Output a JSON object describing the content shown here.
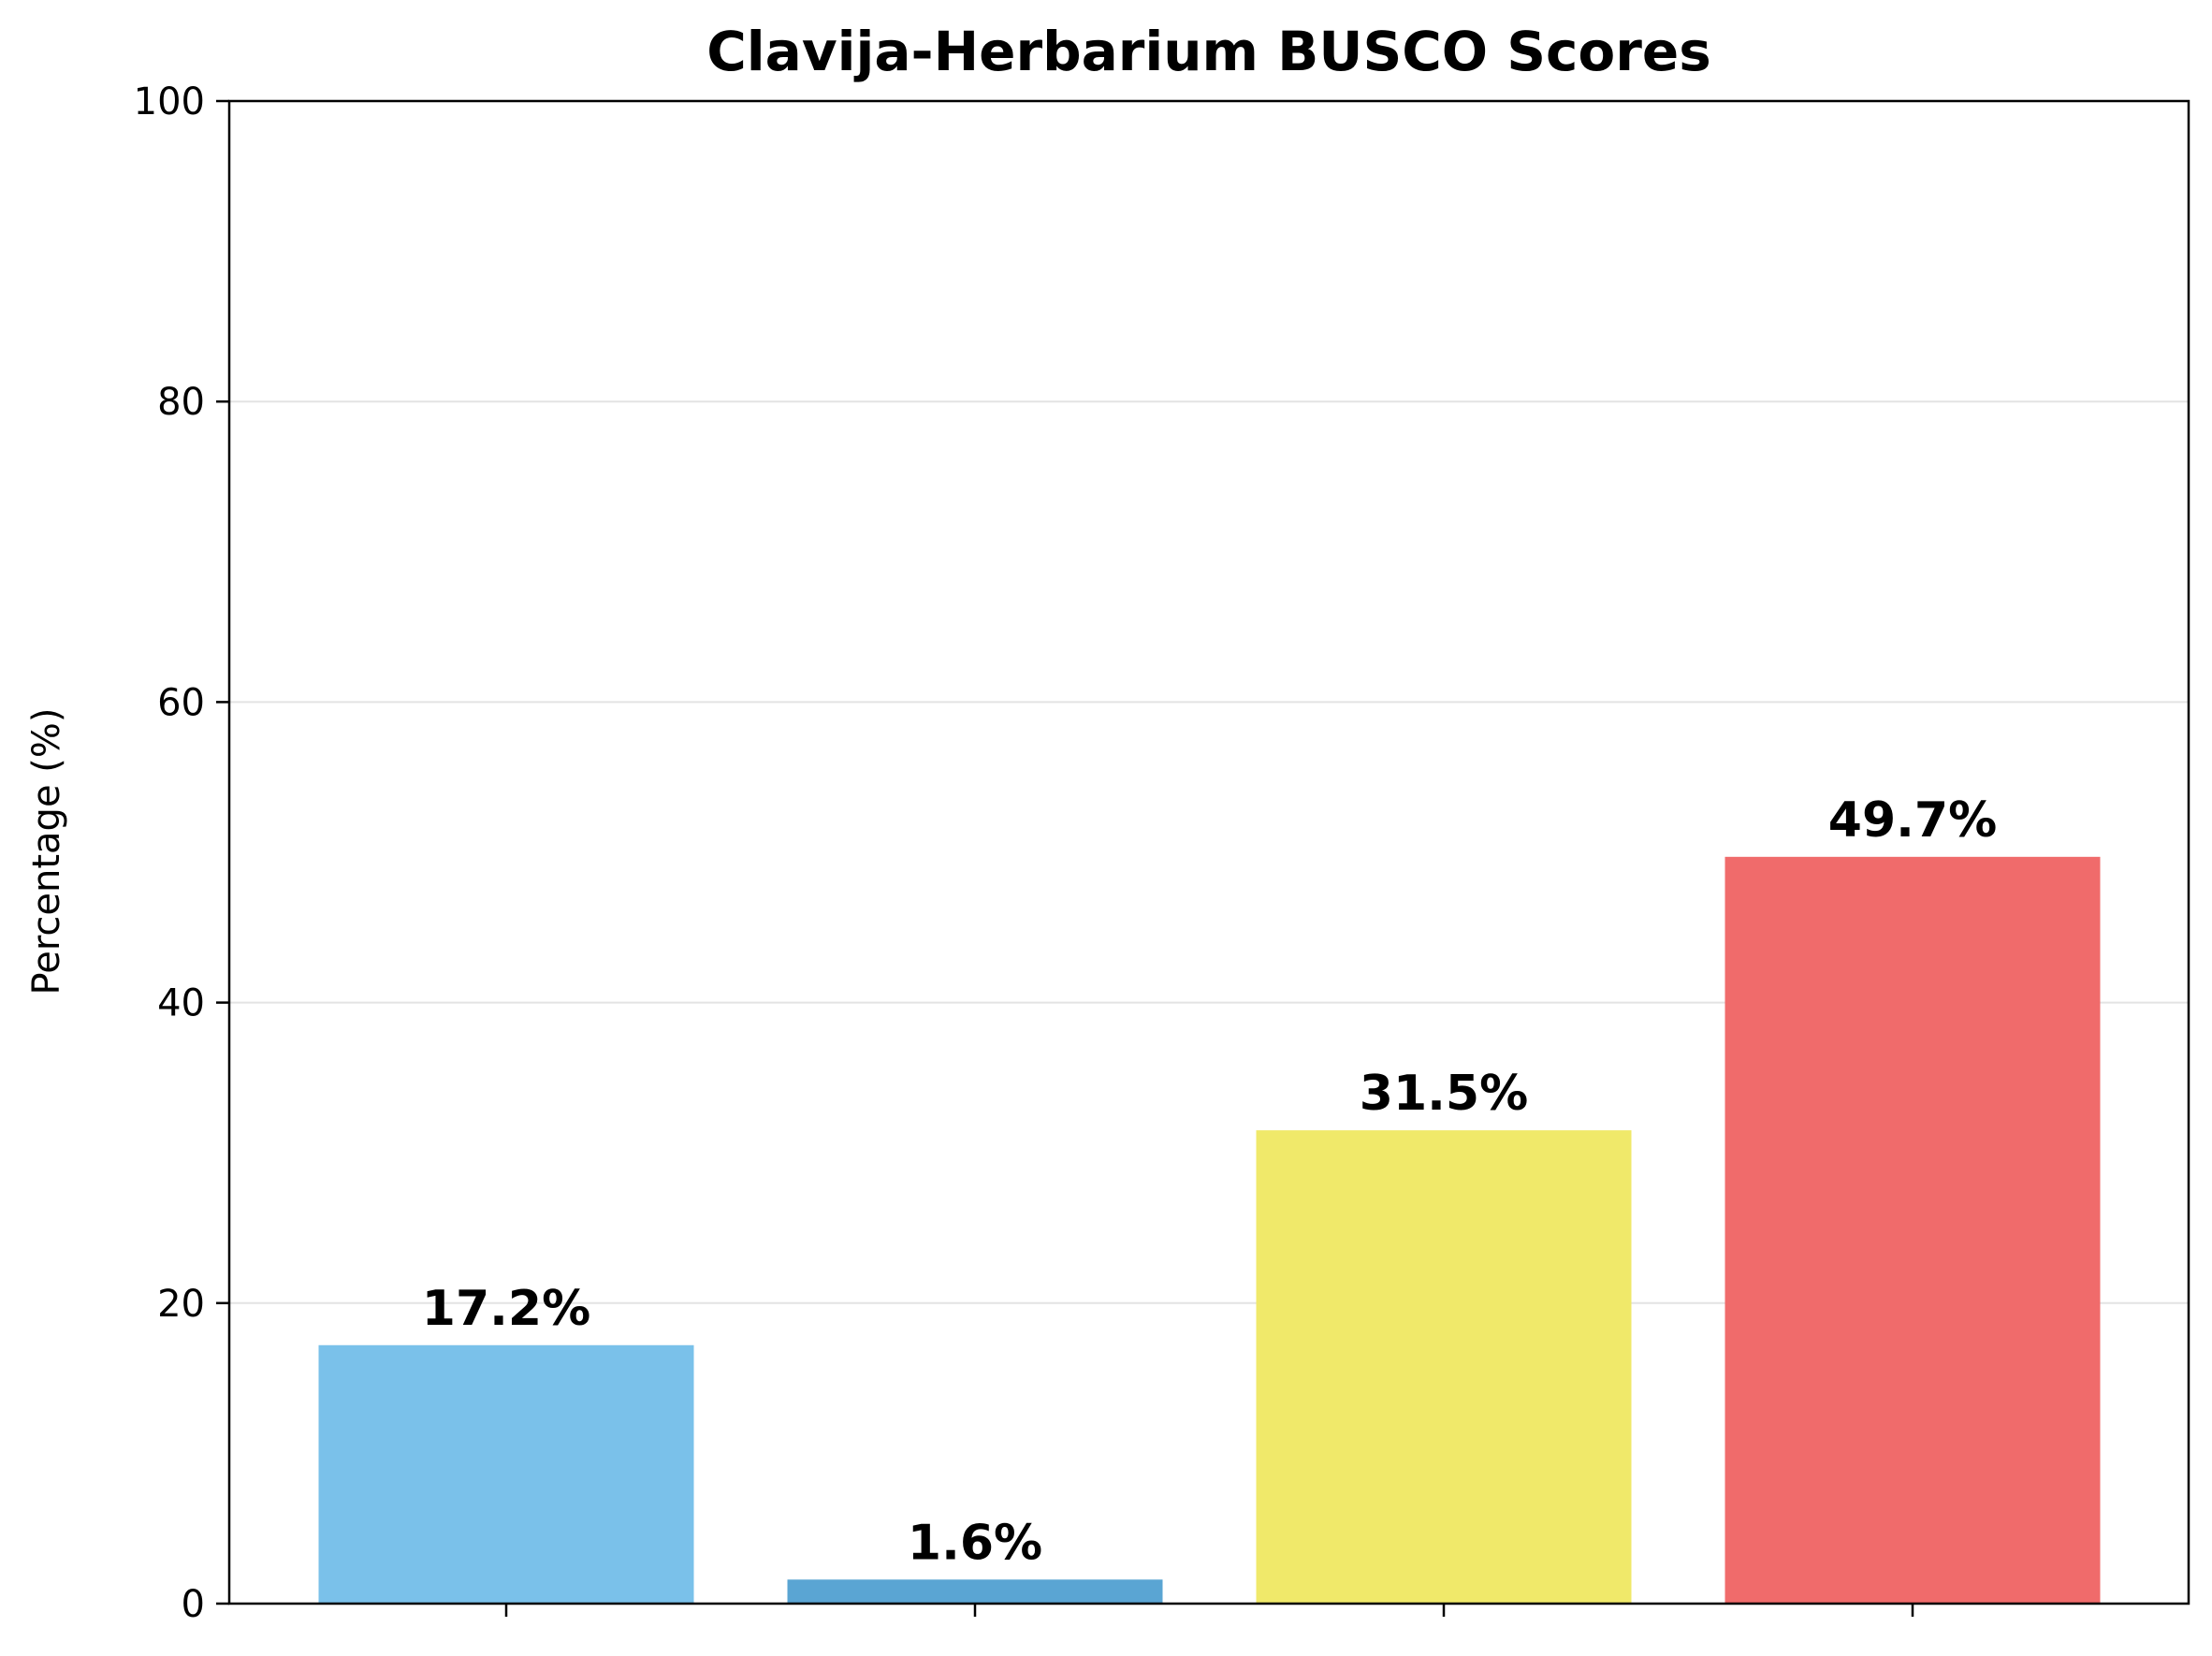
{
  "chart_data": {
    "type": "bar",
    "title": "Clavija-Herbarium BUSCO Scores",
    "xlabel": "",
    "ylabel": "Percentage (%)",
    "ylim": [
      0,
      100
    ],
    "yticks": [
      "0",
      "20",
      "40",
      "60",
      "80",
      "100"
    ],
    "grid": "horizontal",
    "categories": [
      "",
      "",
      "",
      ""
    ],
    "values": [
      17.2,
      1.6,
      31.5,
      49.7
    ],
    "data_labels": [
      "17.2%",
      "1.6%",
      "31.5%",
      "49.7%"
    ],
    "colors": [
      "#7ac1ea",
      "#5aa5d3",
      "#f0e96a",
      "#f06b6b"
    ]
  }
}
